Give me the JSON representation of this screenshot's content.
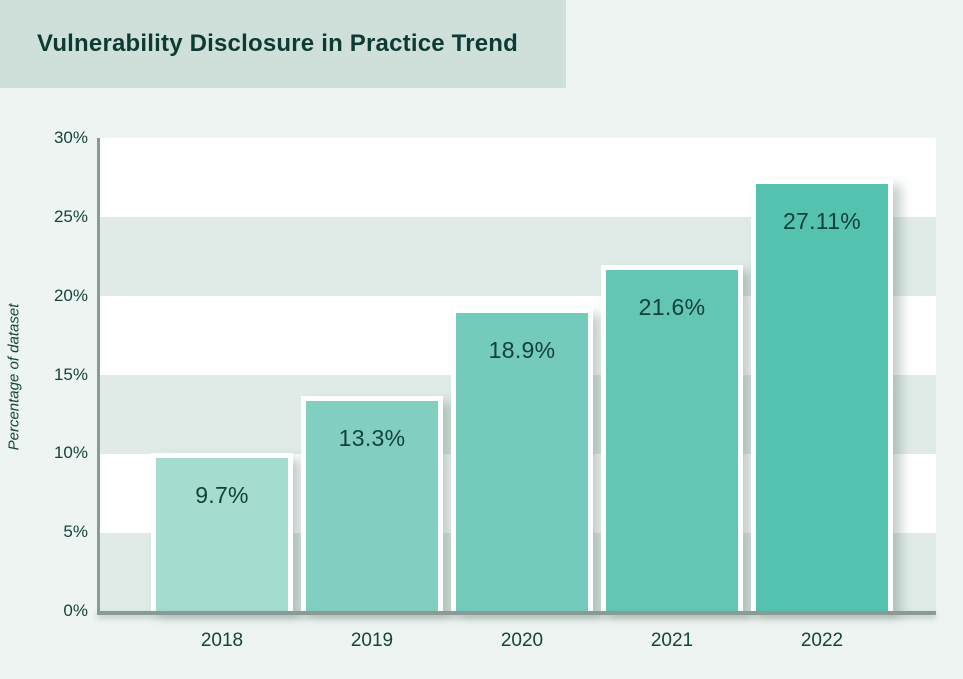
{
  "header": {
    "title": "Vulnerability Disclosure in Practice Trend"
  },
  "chart_data": {
    "type": "bar",
    "title": "Vulnerability Disclosure in Practice Trend",
    "categories": [
      "2018",
      "2019",
      "2020",
      "2021",
      "2022"
    ],
    "values": [
      9.7,
      13.3,
      18.9,
      21.6,
      27.11
    ],
    "value_labels": [
      "9.7%",
      "13.3%",
      "18.9%",
      "21.6%",
      "27.11%"
    ],
    "bar_colors": [
      "#a5dcd0",
      "#82cfc1",
      "#74cbbc",
      "#63c6b4",
      "#55c2b0"
    ],
    "xlabel": "",
    "ylabel": "Percentage of dataset",
    "ylim": [
      0,
      30
    ],
    "yticks": [
      {
        "label": "0%",
        "value": 0
      },
      {
        "label": "5%",
        "value": 5
      },
      {
        "label": "10%",
        "value": 10
      },
      {
        "label": "15%",
        "value": 15
      },
      {
        "label": "20%",
        "value": 20
      },
      {
        "label": "25%",
        "value": 25
      },
      {
        "label": "30%",
        "value": 30
      }
    ],
    "grid": "alternating horizontal bands",
    "legend_position": "none",
    "value_labels_inside_bars": true
  },
  "colors": {
    "page_background": "#eef4f2",
    "banner_background": "#cfe0da",
    "band": "#e0ebe7",
    "plot_background": "#ffffff",
    "axis_line": "#8a9b95",
    "text_dark": "#0d3a33",
    "bar_border": "#ffffff"
  }
}
